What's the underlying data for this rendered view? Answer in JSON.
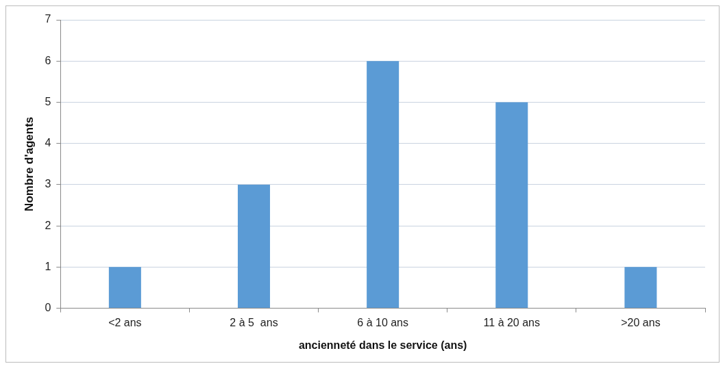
{
  "chart_data": {
    "type": "bar",
    "xlabel": "ancienneté dans le service (ans)",
    "ylabel": "Nombre d'agents",
    "categories": [
      "<2 ans",
      "2 à 5  ans",
      "6 à 10 ans",
      "11 à 20 ans",
      ">20 ans"
    ],
    "values": [
      1,
      3,
      6,
      5,
      1
    ],
    "color": "#5b9bd5",
    "ylim": [
      0,
      7
    ],
    "yticks": [
      0,
      1,
      2,
      3,
      4,
      5,
      6,
      7
    ],
    "grid": "y"
  }
}
